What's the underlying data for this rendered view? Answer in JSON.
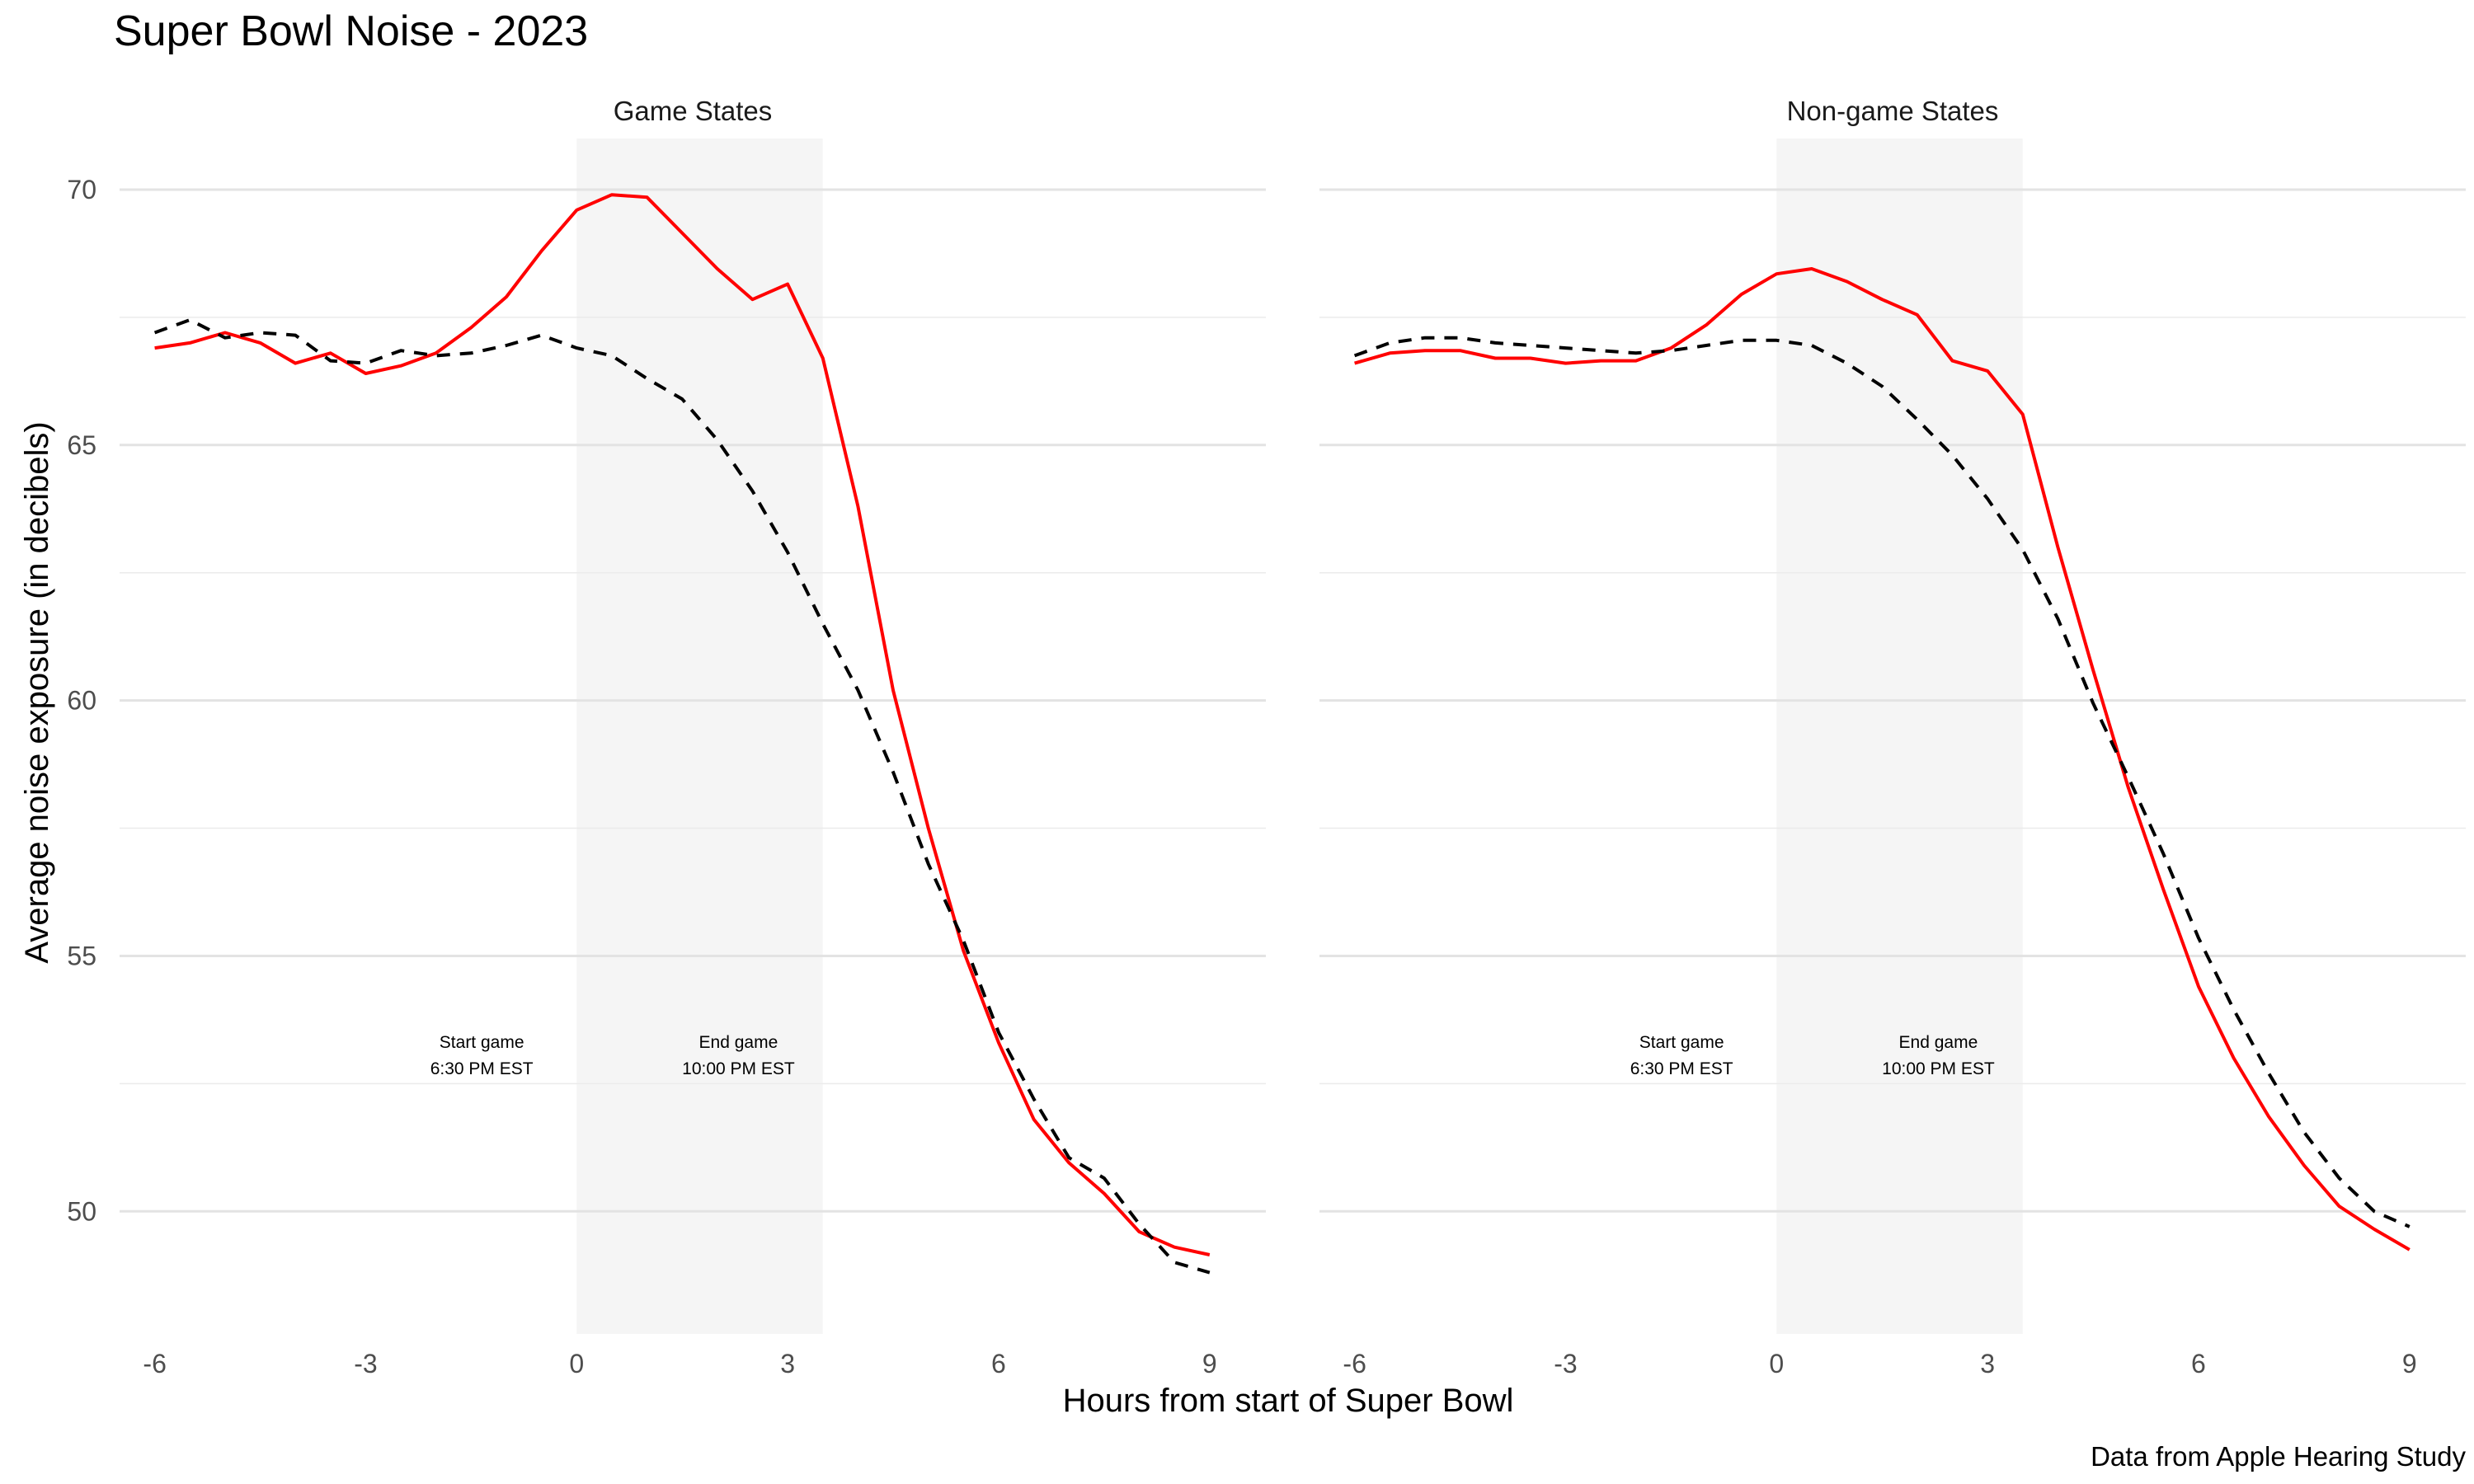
{
  "title": "Super Bowl Noise - 2023",
  "caption": "Data from Apple Hearing Study",
  "chart_data": {
    "type": "line",
    "title": "Super Bowl Noise - 2023",
    "xlabel": "Hours from start of Super Bowl",
    "ylabel": "Average noise exposure (in decibels)",
    "caption": "Data from Apple Hearing Study",
    "xlim": [
      -6.5,
      9.8
    ],
    "ylim": [
      47.6,
      71
    ],
    "x_ticks": [
      -6,
      -3,
      0,
      3,
      6,
      9
    ],
    "y_ticks": [
      50,
      55,
      60,
      65,
      70
    ],
    "grid": true,
    "game_window": [
      0,
      3.5
    ],
    "annotations": [
      {
        "x": -1.35,
        "y": 53.3,
        "line1": "Start game",
        "line2": "6:30 PM EST"
      },
      {
        "x": 2.3,
        "y": 53.3,
        "line1": "End game",
        "line2": "10:00 PM EST"
      }
    ],
    "series_styles": [
      {
        "color": "#ff0000",
        "dash": "solid"
      },
      {
        "color": "#000000",
        "dash": "dashed"
      }
    ],
    "panels": [
      {
        "label": "Game States",
        "x": [
          -6,
          -5.5,
          -5,
          -4.5,
          -4,
          -3.5,
          -3,
          -2.5,
          -2,
          -1.5,
          -1,
          -0.5,
          0,
          0.5,
          1,
          1.5,
          2,
          2.5,
          3,
          3.5,
          4,
          4.5,
          5,
          5.5,
          6,
          6.5,
          7,
          7.5,
          8,
          8.5,
          9
        ],
        "series": [
          {
            "values": [
              66.9,
              67.0,
              67.2,
              67.0,
              66.6,
              66.8,
              66.4,
              66.55,
              66.8,
              67.3,
              67.9,
              68.8,
              69.6,
              69.9,
              69.85,
              69.15,
              68.45,
              67.85,
              68.15,
              66.7,
              63.8,
              60.2,
              57.5,
              55.1,
              53.3,
              51.8,
              50.95,
              50.35,
              49.6,
              49.3,
              49.15
            ]
          },
          {
            "values": [
              67.2,
              67.45,
              67.1,
              67.2,
              67.15,
              66.65,
              66.6,
              66.85,
              66.75,
              66.8,
              66.95,
              67.15,
              66.9,
              66.75,
              66.3,
              65.9,
              65.1,
              64.1,
              62.9,
              61.5,
              60.2,
              58.6,
              56.8,
              55.3,
              53.5,
              52.2,
              51.05,
              50.65,
              49.75,
              49.0,
              48.8
            ]
          }
        ]
      },
      {
        "label": "Non-game States",
        "x": [
          -6,
          -5.5,
          -5,
          -4.5,
          -4,
          -3.5,
          -3,
          -2.5,
          -2,
          -1.5,
          -1,
          -0.5,
          0,
          0.5,
          1,
          1.5,
          2,
          2.5,
          3,
          3.5,
          4,
          4.5,
          5,
          5.5,
          6,
          6.5,
          7,
          7.5,
          8,
          8.5,
          9
        ],
        "series": [
          {
            "values": [
              66.6,
              66.8,
              66.85,
              66.85,
              66.7,
              66.7,
              66.6,
              66.65,
              66.65,
              66.9,
              67.35,
              67.95,
              68.35,
              68.45,
              68.2,
              67.85,
              67.55,
              66.65,
              66.45,
              65.6,
              63.0,
              60.6,
              58.3,
              56.3,
              54.4,
              53.0,
              51.85,
              50.9,
              50.1,
              49.65,
              49.25
            ]
          },
          {
            "values": [
              66.75,
              67.0,
              67.1,
              67.1,
              67.0,
              66.95,
              66.9,
              66.85,
              66.8,
              66.85,
              66.95,
              67.05,
              67.05,
              66.95,
              66.6,
              66.15,
              65.5,
              64.8,
              63.95,
              62.95,
              61.6,
              59.95,
              58.5,
              57.0,
              55.35,
              53.95,
              52.7,
              51.55,
              50.65,
              50.0,
              49.7
            ]
          }
        ]
      }
    ]
  }
}
